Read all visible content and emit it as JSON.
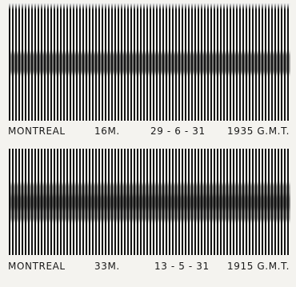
{
  "records": [
    {
      "location": "MONTREAL",
      "wavelength": "16M.",
      "date": "29 - 6 - 31",
      "time": "1935 G.M.T."
    },
    {
      "location": "MONTREAL",
      "wavelength": "33M.",
      "date": "13 - 5 - 31",
      "time": "1915 G.M.T."
    }
  ]
}
